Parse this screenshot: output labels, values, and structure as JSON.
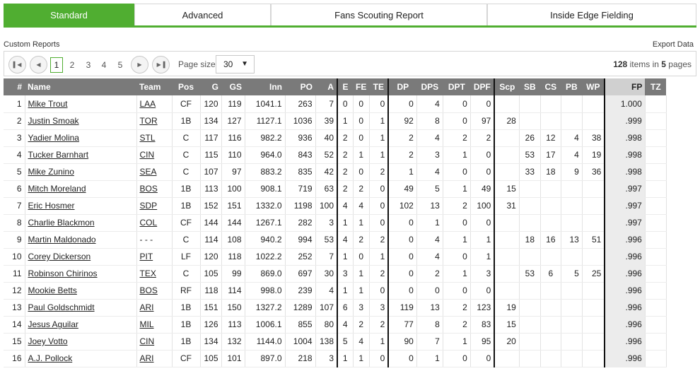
{
  "tabs": [
    "Standard",
    "Advanced",
    "Fans Scouting Report",
    "Inside Edge Fielding"
  ],
  "toolbar": {
    "custom_reports": "Custom Reports",
    "export_data": "Export Data"
  },
  "pager": {
    "pages": [
      "1",
      "2",
      "3",
      "4",
      "5"
    ],
    "current_page": "1",
    "page_size_label": "Page size:",
    "page_size_value": "30",
    "items_count": "128",
    "items_mid": "items in",
    "pages_count": "5",
    "pages_suffix": "pages"
  },
  "table": {
    "columns": [
      "#",
      "Name",
      "Team",
      "Pos",
      "G",
      "GS",
      "Inn",
      "PO",
      "A",
      "E",
      "FE",
      "TE",
      "DP",
      "DPS",
      "DPT",
      "DPF",
      "Scp",
      "SB",
      "CS",
      "PB",
      "WP",
      "FP",
      "TZ"
    ],
    "rows": [
      [
        "1",
        "Mike Trout",
        "LAA",
        "CF",
        "120",
        "119",
        "1041.1",
        "263",
        "7",
        "0",
        "0",
        "0",
        "0",
        "4",
        "0",
        "0",
        "",
        "",
        "",
        "",
        "",
        "1.000",
        ""
      ],
      [
        "2",
        "Justin Smoak",
        "TOR",
        "1B",
        "134",
        "127",
        "1127.1",
        "1036",
        "39",
        "1",
        "0",
        "1",
        "92",
        "8",
        "0",
        "97",
        "28",
        "",
        "",
        "",
        "",
        ".999",
        ""
      ],
      [
        "3",
        "Yadier Molina",
        "STL",
        "C",
        "117",
        "116",
        "982.2",
        "936",
        "40",
        "2",
        "0",
        "1",
        "2",
        "4",
        "2",
        "2",
        "",
        "26",
        "12",
        "4",
        "38",
        ".998",
        ""
      ],
      [
        "4",
        "Tucker Barnhart",
        "CIN",
        "C",
        "115",
        "110",
        "964.0",
        "843",
        "52",
        "2",
        "1",
        "1",
        "2",
        "3",
        "1",
        "0",
        "",
        "53",
        "17",
        "4",
        "19",
        ".998",
        ""
      ],
      [
        "5",
        "Mike Zunino",
        "SEA",
        "C",
        "107",
        "97",
        "883.2",
        "835",
        "42",
        "2",
        "0",
        "2",
        "1",
        "4",
        "0",
        "0",
        "",
        "33",
        "18",
        "9",
        "36",
        ".998",
        ""
      ],
      [
        "6",
        "Mitch Moreland",
        "BOS",
        "1B",
        "113",
        "100",
        "908.1",
        "719",
        "63",
        "2",
        "2",
        "0",
        "49",
        "5",
        "1",
        "49",
        "15",
        "",
        "",
        "",
        "",
        ".997",
        ""
      ],
      [
        "7",
        "Eric Hosmer",
        "SDP",
        "1B",
        "152",
        "151",
        "1332.0",
        "1198",
        "100",
        "4",
        "4",
        "0",
        "102",
        "13",
        "2",
        "100",
        "31",
        "",
        "",
        "",
        "",
        ".997",
        ""
      ],
      [
        "8",
        "Charlie Blackmon",
        "COL",
        "CF",
        "144",
        "144",
        "1267.1",
        "282",
        "3",
        "1",
        "1",
        "0",
        "0",
        "1",
        "0",
        "0",
        "",
        "",
        "",
        "",
        "",
        ".997",
        ""
      ],
      [
        "9",
        "Martin Maldonado",
        "- - -",
        "C",
        "114",
        "108",
        "940.2",
        "994",
        "53",
        "4",
        "2",
        "2",
        "0",
        "4",
        "1",
        "1",
        "",
        "18",
        "16",
        "13",
        "51",
        ".996",
        ""
      ],
      [
        "10",
        "Corey Dickerson",
        "PIT",
        "LF",
        "120",
        "118",
        "1022.2",
        "252",
        "7",
        "1",
        "0",
        "1",
        "0",
        "4",
        "0",
        "1",
        "",
        "",
        "",
        "",
        "",
        ".996",
        ""
      ],
      [
        "11",
        "Robinson Chirinos",
        "TEX",
        "C",
        "105",
        "99",
        "869.0",
        "697",
        "30",
        "3",
        "1",
        "2",
        "0",
        "2",
        "1",
        "3",
        "",
        "53",
        "6",
        "5",
        "25",
        ".996",
        ""
      ],
      [
        "12",
        "Mookie Betts",
        "BOS",
        "RF",
        "118",
        "114",
        "998.0",
        "239",
        "4",
        "1",
        "1",
        "0",
        "0",
        "0",
        "0",
        "0",
        "",
        "",
        "",
        "",
        "",
        ".996",
        ""
      ],
      [
        "13",
        "Paul Goldschmidt",
        "ARI",
        "1B",
        "151",
        "150",
        "1327.2",
        "1289",
        "107",
        "6",
        "3",
        "3",
        "119",
        "13",
        "2",
        "123",
        "19",
        "",
        "",
        "",
        "",
        ".996",
        ""
      ],
      [
        "14",
        "Jesus Aguilar",
        "MIL",
        "1B",
        "126",
        "113",
        "1006.1",
        "855",
        "80",
        "4",
        "2",
        "2",
        "77",
        "8",
        "2",
        "83",
        "15",
        "",
        "",
        "",
        "",
        ".996",
        ""
      ],
      [
        "15",
        "Joey Votto",
        "CIN",
        "1B",
        "134",
        "132",
        "1144.0",
        "1004",
        "138",
        "5",
        "4",
        "1",
        "90",
        "7",
        "1",
        "95",
        "20",
        "",
        "",
        "",
        "",
        ".996",
        ""
      ],
      [
        "16",
        "A.J. Pollock",
        "ARI",
        "CF",
        "105",
        "101",
        "897.0",
        "218",
        "3",
        "1",
        "1",
        "0",
        "0",
        "1",
        "0",
        "0",
        "",
        "",
        "",
        "",
        "",
        ".996",
        ""
      ]
    ]
  },
  "colors": {
    "accent": "#50ae31",
    "header_bg": "#7a7a7a",
    "sorted_bg": "#ececec"
  },
  "icons": {
    "first": "first-page-icon",
    "prev": "prev-page-icon",
    "next": "next-page-icon",
    "last": "last-page-icon",
    "dropdown": "chevron-down-icon"
  }
}
